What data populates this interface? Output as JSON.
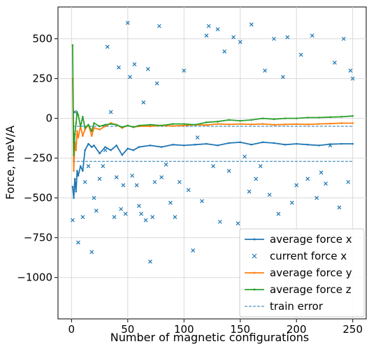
{
  "chart_data": {
    "type": "line",
    "xlabel": "Number of magnetic configurations",
    "ylabel": "Force, meV/A",
    "xlim": [
      -12,
      262
    ],
    "ylim": [
      -1260,
      700
    ],
    "xticks": [
      0,
      50,
      100,
      150,
      200,
      250
    ],
    "yticks": [
      500,
      250,
      0,
      -250,
      -500,
      -750,
      -1000
    ],
    "xtick_labels": [
      "0",
      "50",
      "100",
      "150",
      "200",
      "250"
    ],
    "ytick_labels": [
      "500",
      "250",
      "0",
      "−250",
      "−500",
      "−750",
      "−1000"
    ],
    "grid": true,
    "legend_position": "bottom-right",
    "legend": [
      {
        "label": "average force x",
        "color": "#1f77b4",
        "style": "line-marker"
      },
      {
        "label": "current force x",
        "color": "#1f77b4",
        "style": "x-marker"
      },
      {
        "label": "average force y",
        "color": "#ff7f0e",
        "style": "line-marker"
      },
      {
        "label": "average force z",
        "color": "#2ca02c",
        "style": "line-marker"
      },
      {
        "label": "train error",
        "color": "#1f77b4",
        "style": "dashed"
      }
    ],
    "series": [
      {
        "name": "average force x",
        "color": "#1f77b4",
        "x": [
          1,
          2,
          3,
          4,
          5,
          6,
          8,
          10,
          12,
          15,
          18,
          20,
          25,
          30,
          35,
          40,
          45,
          50,
          55,
          60,
          70,
          80,
          90,
          100,
          110,
          120,
          130,
          140,
          150,
          160,
          170,
          180,
          190,
          200,
          210,
          220,
          230,
          240,
          250
        ],
        "y": [
          -430,
          -500,
          -380,
          -460,
          -330,
          -360,
          -300,
          -330,
          -200,
          -160,
          -180,
          -170,
          -220,
          -180,
          -200,
          -170,
          -230,
          -190,
          -200,
          -180,
          -170,
          -180,
          -165,
          -170,
          -165,
          -160,
          -170,
          -155,
          -150,
          -165,
          -150,
          -155,
          -165,
          -160,
          -165,
          -170,
          -162,
          -160,
          -160
        ]
      },
      {
        "name": "average force y",
        "color": "#ff7f0e",
        "x": [
          1,
          2,
          3,
          4,
          5,
          6,
          8,
          10,
          12,
          15,
          18,
          20,
          25,
          30,
          35,
          40,
          45,
          50,
          55,
          60,
          70,
          80,
          90,
          100,
          110,
          120,
          130,
          140,
          150,
          160,
          170,
          180,
          190,
          200,
          210,
          220,
          230,
          240,
          250
        ],
        "y": [
          250,
          -330,
          -150,
          -200,
          -80,
          -120,
          -50,
          -110,
          -70,
          -40,
          -110,
          -60,
          -70,
          -50,
          -30,
          -40,
          -60,
          -45,
          -55,
          -50,
          -50,
          -45,
          -48,
          -45,
          -40,
          -42,
          -35,
          -38,
          -35,
          -38,
          -35,
          -40,
          -38,
          -36,
          -38,
          -35,
          -33,
          -30,
          -30
        ]
      },
      {
        "name": "average force z",
        "color": "#2ca02c",
        "x": [
          1,
          2,
          3,
          4,
          5,
          6,
          8,
          10,
          12,
          15,
          18,
          20,
          25,
          30,
          35,
          40,
          45,
          50,
          55,
          60,
          70,
          80,
          90,
          100,
          110,
          120,
          130,
          140,
          150,
          160,
          170,
          180,
          190,
          200,
          210,
          220,
          230,
          240,
          250
        ],
        "y": [
          460,
          -230,
          -100,
          -30,
          40,
          20,
          -50,
          10,
          -60,
          -40,
          -80,
          -30,
          -50,
          -40,
          -35,
          -40,
          -55,
          -45,
          -55,
          -45,
          -40,
          -45,
          -35,
          -35,
          -40,
          -25,
          -20,
          -10,
          -15,
          -10,
          0,
          -5,
          0,
          0,
          5,
          5,
          8,
          10,
          15
        ]
      }
    ],
    "scatter": {
      "name": "current force x",
      "color": "#1f77b4",
      "points": [
        [
          1,
          -640
        ],
        [
          3,
          40
        ],
        [
          6,
          -780
        ],
        [
          10,
          -620
        ],
        [
          12,
          -400
        ],
        [
          15,
          -300
        ],
        [
          18,
          -840
        ],
        [
          20,
          -500
        ],
        [
          22,
          -580
        ],
        [
          25,
          -380
        ],
        [
          28,
          -300
        ],
        [
          30,
          -200
        ],
        [
          32,
          450
        ],
        [
          35,
          40
        ],
        [
          38,
          -620
        ],
        [
          40,
          -370
        ],
        [
          42,
          320
        ],
        [
          44,
          -570
        ],
        [
          46,
          -420
        ],
        [
          48,
          -600
        ],
        [
          50,
          600
        ],
        [
          52,
          260
        ],
        [
          54,
          -360
        ],
        [
          56,
          340
        ],
        [
          58,
          -420
        ],
        [
          60,
          -550
        ],
        [
          62,
          -600
        ],
        [
          64,
          100
        ],
        [
          66,
          -640
        ],
        [
          68,
          310
        ],
        [
          70,
          -900
        ],
        [
          72,
          -620
        ],
        [
          74,
          -400
        ],
        [
          76,
          220
        ],
        [
          78,
          580
        ],
        [
          80,
          -370
        ],
        [
          84,
          -290
        ],
        [
          88,
          -530
        ],
        [
          92,
          -620
        ],
        [
          96,
          -400
        ],
        [
          100,
          300
        ],
        [
          104,
          -450
        ],
        [
          108,
          -830
        ],
        [
          112,
          -120
        ],
        [
          116,
          -520
        ],
        [
          120,
          520
        ],
        [
          122,
          580
        ],
        [
          126,
          -300
        ],
        [
          130,
          560
        ],
        [
          132,
          -650
        ],
        [
          136,
          420
        ],
        [
          140,
          -330
        ],
        [
          144,
          510
        ],
        [
          148,
          -660
        ],
        [
          150,
          480
        ],
        [
          154,
          -240
        ],
        [
          158,
          -460
        ],
        [
          160,
          590
        ],
        [
          164,
          -380
        ],
        [
          168,
          -300
        ],
        [
          172,
          300
        ],
        [
          176,
          -480
        ],
        [
          180,
          500
        ],
        [
          184,
          -600
        ],
        [
          188,
          260
        ],
        [
          192,
          510
        ],
        [
          196,
          -530
        ],
        [
          200,
          -420
        ],
        [
          204,
          400
        ],
        [
          210,
          -380
        ],
        [
          214,
          520
        ],
        [
          218,
          -500
        ],
        [
          222,
          -340
        ],
        [
          226,
          -410
        ],
        [
          230,
          -170
        ],
        [
          234,
          350
        ],
        [
          238,
          -560
        ],
        [
          242,
          500
        ],
        [
          246,
          -400
        ],
        [
          248,
          300
        ],
        [
          250,
          250
        ]
      ]
    },
    "train_error": [
      {
        "name": "train error",
        "color": "#1f77b4",
        "y": -270
      },
      {
        "name": "train error",
        "color": "#1f77b4",
        "y": -50
      }
    ]
  }
}
